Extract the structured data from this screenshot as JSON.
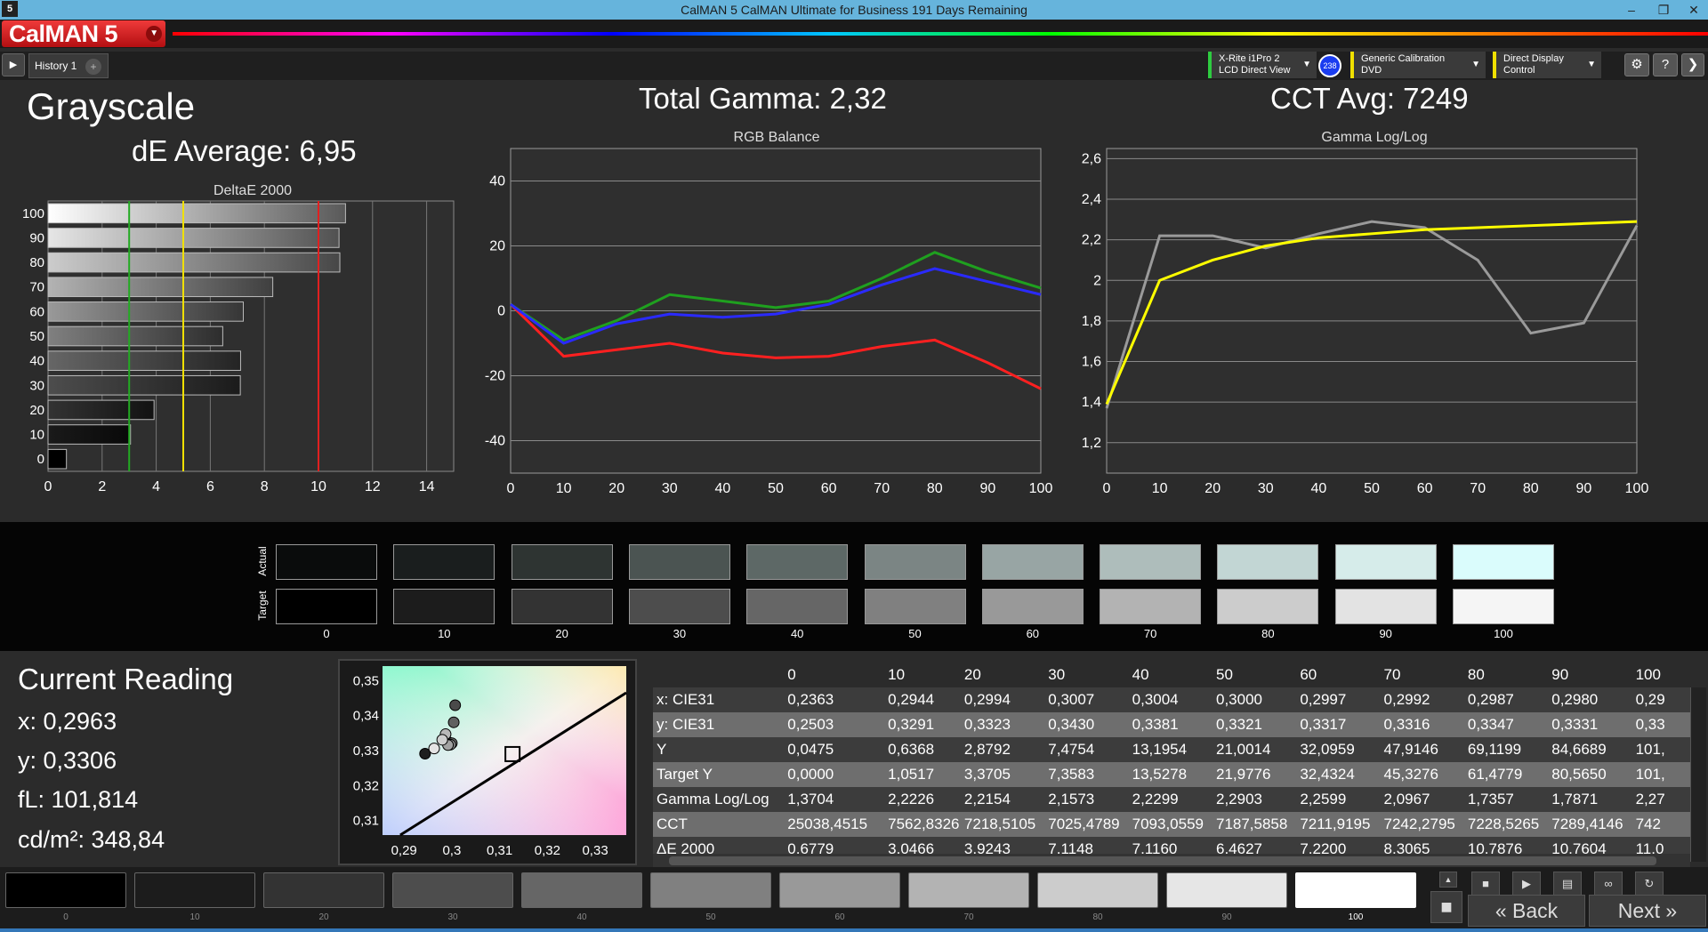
{
  "window": {
    "title": "CalMAN 5 CalMAN Ultimate for Business 191 Days Remaining",
    "app_icon": "5",
    "minimize": "–",
    "restore": "❐",
    "close": "✕"
  },
  "app": {
    "logo": "CalMAN 5"
  },
  "tabs": {
    "history": "History 1",
    "add": "+"
  },
  "devices": [
    {
      "name": "meter-select",
      "line1": "X-Rite i1Pro 2",
      "line2": "LCD Direct View",
      "accent": "#2ecc40"
    },
    {
      "name": "source-select",
      "line1": "Generic Calibration DVD",
      "line2": "",
      "accent": "#f0e000"
    },
    {
      "name": "display-select",
      "line1": "Direct Display Control",
      "line2": "",
      "accent": "#f0e000"
    }
  ],
  "meter_badge": "238",
  "page": {
    "title": "Grayscale",
    "de_average": "dE Average: 6,95",
    "total_gamma": "Total Gamma: 2,32",
    "cct_avg": "CCT Avg: 7249"
  },
  "chart_data": [
    {
      "type": "bar",
      "title": "DeltaE 2000",
      "orientation": "horizontal",
      "categories": [
        "0",
        "10",
        "20",
        "30",
        "40",
        "50",
        "60",
        "70",
        "80",
        "90",
        "100"
      ],
      "values": [
        0.68,
        3.05,
        3.92,
        7.11,
        7.12,
        6.46,
        7.22,
        8.31,
        10.79,
        10.76,
        11.0
      ],
      "xlim": [
        0,
        15
      ],
      "xticks": [
        "0",
        "2",
        "4",
        "6",
        "8",
        "10",
        "12",
        "14"
      ],
      "yticks": [
        "0",
        "10",
        "20",
        "30",
        "40",
        "50",
        "60",
        "70",
        "80",
        "90",
        "100"
      ],
      "thresholds": [
        {
          "value": 3,
          "color": "#22aa22"
        },
        {
          "value": 5,
          "color": "#f0e000"
        },
        {
          "value": 10,
          "color": "#e02020"
        }
      ]
    },
    {
      "type": "line",
      "title": "RGB Balance",
      "x": [
        0,
        10,
        20,
        30,
        40,
        50,
        60,
        70,
        80,
        90,
        100
      ],
      "series": [
        {
          "color": "#ff2020",
          "values": [
            2,
            -14,
            -12,
            -10,
            -13,
            -14.5,
            -14,
            -11,
            -9,
            -16,
            -24
          ]
        },
        {
          "color": "#1fa01f",
          "values": [
            2,
            -9,
            -3,
            5,
            3,
            1,
            3,
            10,
            18,
            12,
            7
          ]
        },
        {
          "color": "#2a2aff",
          "values": [
            2,
            -10,
            -4,
            -1,
            -2,
            -1,
            2,
            8,
            13,
            9,
            5
          ]
        }
      ],
      "xlim": [
        0,
        100
      ],
      "ylim": [
        -50,
        50
      ],
      "xticks": [
        "0",
        "10",
        "20",
        "30",
        "40",
        "50",
        "60",
        "70",
        "80",
        "90",
        "100"
      ],
      "yticks": [
        "40",
        "20",
        "0",
        "-20",
        "-40"
      ]
    },
    {
      "type": "line",
      "title": "Gamma Log/Log",
      "x": [
        0,
        10,
        20,
        30,
        40,
        50,
        60,
        70,
        80,
        90,
        100
      ],
      "series": [
        {
          "color": "#9a9a9a",
          "values": [
            1.37,
            2.22,
            2.22,
            2.16,
            2.23,
            2.29,
            2.26,
            2.1,
            1.74,
            1.79,
            2.27
          ]
        },
        {
          "color": "#ffff00",
          "values": [
            1.39,
            2.0,
            2.1,
            2.17,
            2.21,
            2.23,
            2.25,
            2.26,
            2.27,
            2.28,
            2.29
          ]
        }
      ],
      "xlim": [
        0,
        100
      ],
      "ylim": [
        1.05,
        2.65
      ],
      "xticks": [
        "0",
        "10",
        "20",
        "30",
        "40",
        "50",
        "60",
        "70",
        "80",
        "90",
        "100"
      ],
      "yticks": [
        "2,6",
        "2,4",
        "2,2",
        "2",
        "1,8",
        "1,6",
        "1,4",
        "1,2"
      ]
    },
    {
      "type": "scatter",
      "title": "",
      "xticks": [
        "0,29",
        "0,3",
        "0,31",
        "0,32",
        "0,33"
      ],
      "yticks": [
        "0,35",
        "0,34",
        "0,33",
        "0,32",
        "0,31"
      ],
      "xlim": [
        0.2855,
        0.3365
      ],
      "ylim": [
        0.3058,
        0.3542
      ],
      "points": [
        {
          "x": 0.2944,
          "y": 0.3291
        },
        {
          "x": 0.2994,
          "y": 0.3323
        },
        {
          "x": 0.3007,
          "y": 0.343
        },
        {
          "x": 0.3004,
          "y": 0.3381
        },
        {
          "x": 0.3,
          "y": 0.3321
        },
        {
          "x": 0.2997,
          "y": 0.3317
        },
        {
          "x": 0.2992,
          "y": 0.3316
        },
        {
          "x": 0.2987,
          "y": 0.3347
        },
        {
          "x": 0.298,
          "y": 0.3331
        },
        {
          "x": 0.2963,
          "y": 0.3306
        }
      ],
      "target": {
        "x": 0.3127,
        "y": 0.329
      }
    }
  ],
  "swatches": {
    "actual_label": "Actual",
    "target_label": "Target",
    "labels": [
      "0",
      "10",
      "20",
      "30",
      "40",
      "50",
      "60",
      "70",
      "80",
      "90",
      "100"
    ],
    "actual": [
      "#0a0c0c",
      "#1a1e1e",
      "#2e3432",
      "#4b5452",
      "#5d6866",
      "#7b8584",
      "#98a5a4",
      "#aebdbb",
      "#c2d6d4",
      "#d6ecea",
      "#dafcfc"
    ],
    "target": [
      "#000000",
      "#1c1c1c",
      "#333333",
      "#4d4d4d",
      "#666666",
      "#808080",
      "#999999",
      "#b3b3b3",
      "#cccccc",
      "#e3e3e3",
      "#f5f5f5"
    ]
  },
  "reading": {
    "title": "Current Reading",
    "x": "x: 0,2963",
    "y": "y: 0,3306",
    "fl": "fL: 101,814",
    "cdm2": "cd/m²: 348,84"
  },
  "table": {
    "columns": [
      "",
      "0",
      "10",
      "20",
      "30",
      "40",
      "50",
      "60",
      "70",
      "80",
      "90",
      "100"
    ],
    "rows": [
      [
        "x: CIE31",
        "0,2363",
        "0,2944",
        "0,2994",
        "0,3007",
        "0,3004",
        "0,3000",
        "0,2997",
        "0,2992",
        "0,2987",
        "0,2980",
        "0,29"
      ],
      [
        "y: CIE31",
        "0,2503",
        "0,3291",
        "0,3323",
        "0,3430",
        "0,3381",
        "0,3321",
        "0,3317",
        "0,3316",
        "0,3347",
        "0,3331",
        "0,33"
      ],
      [
        "Y",
        "0,0475",
        "0,6368",
        "2,8792",
        "7,4754",
        "13,1954",
        "21,0014",
        "32,0959",
        "47,9146",
        "69,1199",
        "84,6689",
        "101,"
      ],
      [
        "Target Y",
        "0,0000",
        "1,0517",
        "3,3705",
        "7,3583",
        "13,5278",
        "21,9776",
        "32,4324",
        "45,3276",
        "61,4779",
        "80,5650",
        "101,"
      ],
      [
        "Gamma Log/Log",
        "1,3704",
        "2,2226",
        "2,2154",
        "2,1573",
        "2,2299",
        "2,2903",
        "2,2599",
        "2,0967",
        "1,7357",
        "1,7871",
        "2,27"
      ],
      [
        "CCT",
        "25038,4515",
        "7562,8326",
        "7218,5105",
        "7025,4789",
        "7093,0559",
        "7187,5858",
        "7211,9195",
        "7242,2795",
        "7228,5265",
        "7289,4146",
        "742"
      ],
      [
        "ΔE 2000",
        "0,6779",
        "3,0466",
        "3,9243",
        "7,1148",
        "7,1160",
        "6,4627",
        "7,2200",
        "8,3065",
        "10,7876",
        "10,7604",
        "11,0"
      ]
    ]
  },
  "patches": {
    "labels": [
      "0",
      "10",
      "20",
      "30",
      "40",
      "50",
      "60",
      "70",
      "80",
      "90",
      "100"
    ],
    "colors": [
      "#000000",
      "#1c1c1c",
      "#333333",
      "#4d4d4d",
      "#666666",
      "#808080",
      "#999999",
      "#b3b3b3",
      "#cccccc",
      "#e6e6e6",
      "#ffffff"
    ]
  },
  "nav": {
    "back": "Back",
    "next": "Next"
  }
}
